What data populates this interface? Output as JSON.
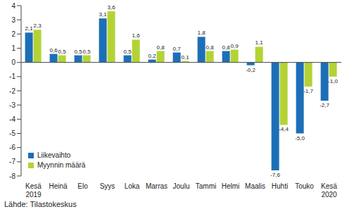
{
  "chart_data": {
    "type": "bar",
    "source": "Lähde: Tilastokeskus",
    "categories": [
      "Kesä\n2019",
      "Heinä",
      "Elo",
      "Syys",
      "Loka",
      "Marras",
      "Joulu",
      "Tammi",
      "Helmi",
      "Maalis",
      "Huhti",
      "Touko",
      "Kesä\n2020"
    ],
    "series": [
      {
        "name": "Liikevaihto",
        "color": "#1c6fb7",
        "values": [
          2.1,
          0.6,
          0.5,
          3.1,
          0.5,
          0.2,
          0.7,
          1.8,
          0.8,
          -0.2,
          -7.6,
          -5.0,
          -2.7
        ],
        "value_labels": [
          "2,1",
          "0,6",
          "0,5",
          "3,1",
          "0,5",
          "0,2",
          "0,7",
          "1,8",
          "0,8",
          "-0,2",
          "-7,6",
          "-5,0",
          "-2,7"
        ]
      },
      {
        "name": "Myynnin määrä",
        "color": "#b3d335",
        "values": [
          2.3,
          0.5,
          0.5,
          3.6,
          1.6,
          0.8,
          0.1,
          0.8,
          0.9,
          1.1,
          -4.4,
          -1.7,
          -1.0
        ],
        "value_labels": [
          "2,3",
          "0,5",
          "0,5",
          "3,6",
          "1,6",
          "0,8",
          "0,1",
          "0,8",
          "0,9",
          "1,1",
          "-4,4",
          "-1,7",
          "-1,0"
        ]
      }
    ],
    "ylim": [
      -8,
      4
    ],
    "yticks": [
      -8,
      -7,
      -6,
      -5,
      -4,
      -3,
      -2,
      -1,
      0,
      1,
      2,
      3,
      4
    ],
    "grid": false,
    "legend": "lower left",
    "data_labels": true
  }
}
